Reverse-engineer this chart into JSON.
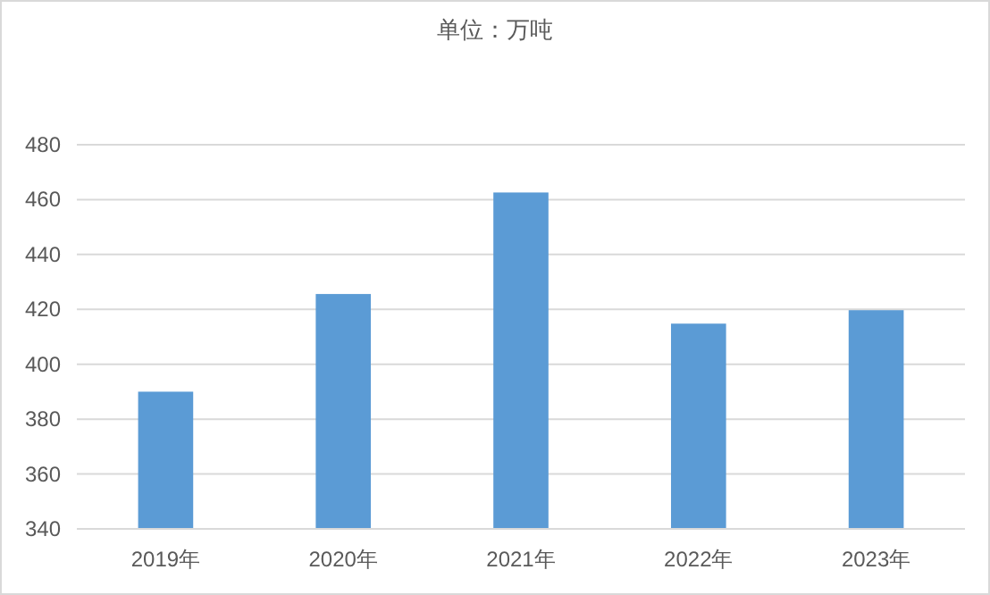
{
  "chart_data": {
    "type": "bar",
    "title": "单位：万吨",
    "categories": [
      "2019年",
      "2020年",
      "2021年",
      "2022年",
      "2023年"
    ],
    "values": [
      390,
      425.6,
      462.6,
      414.8,
      419.7
    ],
    "color": "#5b9bd5",
    "ylim": [
      340,
      480
    ],
    "yticks": [
      340,
      360,
      380,
      400,
      420,
      440,
      460,
      480
    ],
    "grid": "y"
  }
}
